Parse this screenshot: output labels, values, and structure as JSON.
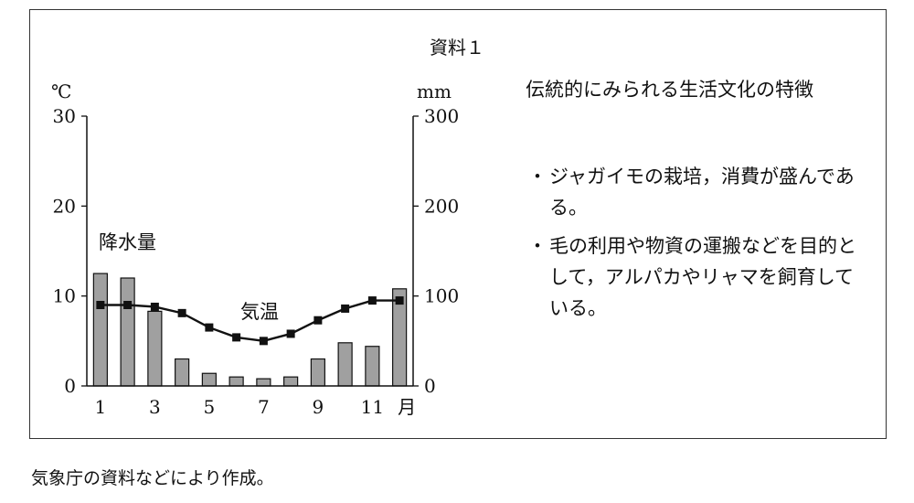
{
  "title": "資料１",
  "features": {
    "heading": "伝統的にみられる生活文化の特徴",
    "items": [
      "ジャガイモの栽培，消費が盛んである。",
      "毛の利用や物資の運搬などを目的として，アルパカやリャマを飼育している。"
    ],
    "bullet_mark": "・"
  },
  "source": "気象庁の資料などにより作成。",
  "chart_data": {
    "type": "bar",
    "categories": [
      "1",
      "2",
      "3",
      "4",
      "5",
      "6",
      "7",
      "8",
      "9",
      "10",
      "11",
      "12"
    ],
    "x_tick_labels": [
      "1",
      "3",
      "5",
      "7",
      "9",
      "11"
    ],
    "x_unit": "月",
    "left_axis": {
      "unit": "℃",
      "ticks": [
        "0",
        "10",
        "20",
        "30"
      ],
      "ylim": [
        0,
        30
      ]
    },
    "right_axis": {
      "unit": "mm",
      "ticks": [
        "0",
        "100",
        "200",
        "300"
      ],
      "ylim": [
        0,
        300
      ]
    },
    "series": [
      {
        "name": "降水量",
        "type": "bar",
        "axis": "right",
        "values": [
          125,
          120,
          83,
          30,
          14,
          10,
          8,
          10,
          30,
          48,
          44,
          108
        ]
      },
      {
        "name": "気温",
        "type": "line",
        "axis": "left",
        "values": [
          9.0,
          9.0,
          8.8,
          8.1,
          6.5,
          5.4,
          5.0,
          5.8,
          7.3,
          8.6,
          9.5,
          9.5
        ]
      }
    ],
    "grid": false,
    "bar_color": "#a0a0a0",
    "line_color": "#111111"
  }
}
